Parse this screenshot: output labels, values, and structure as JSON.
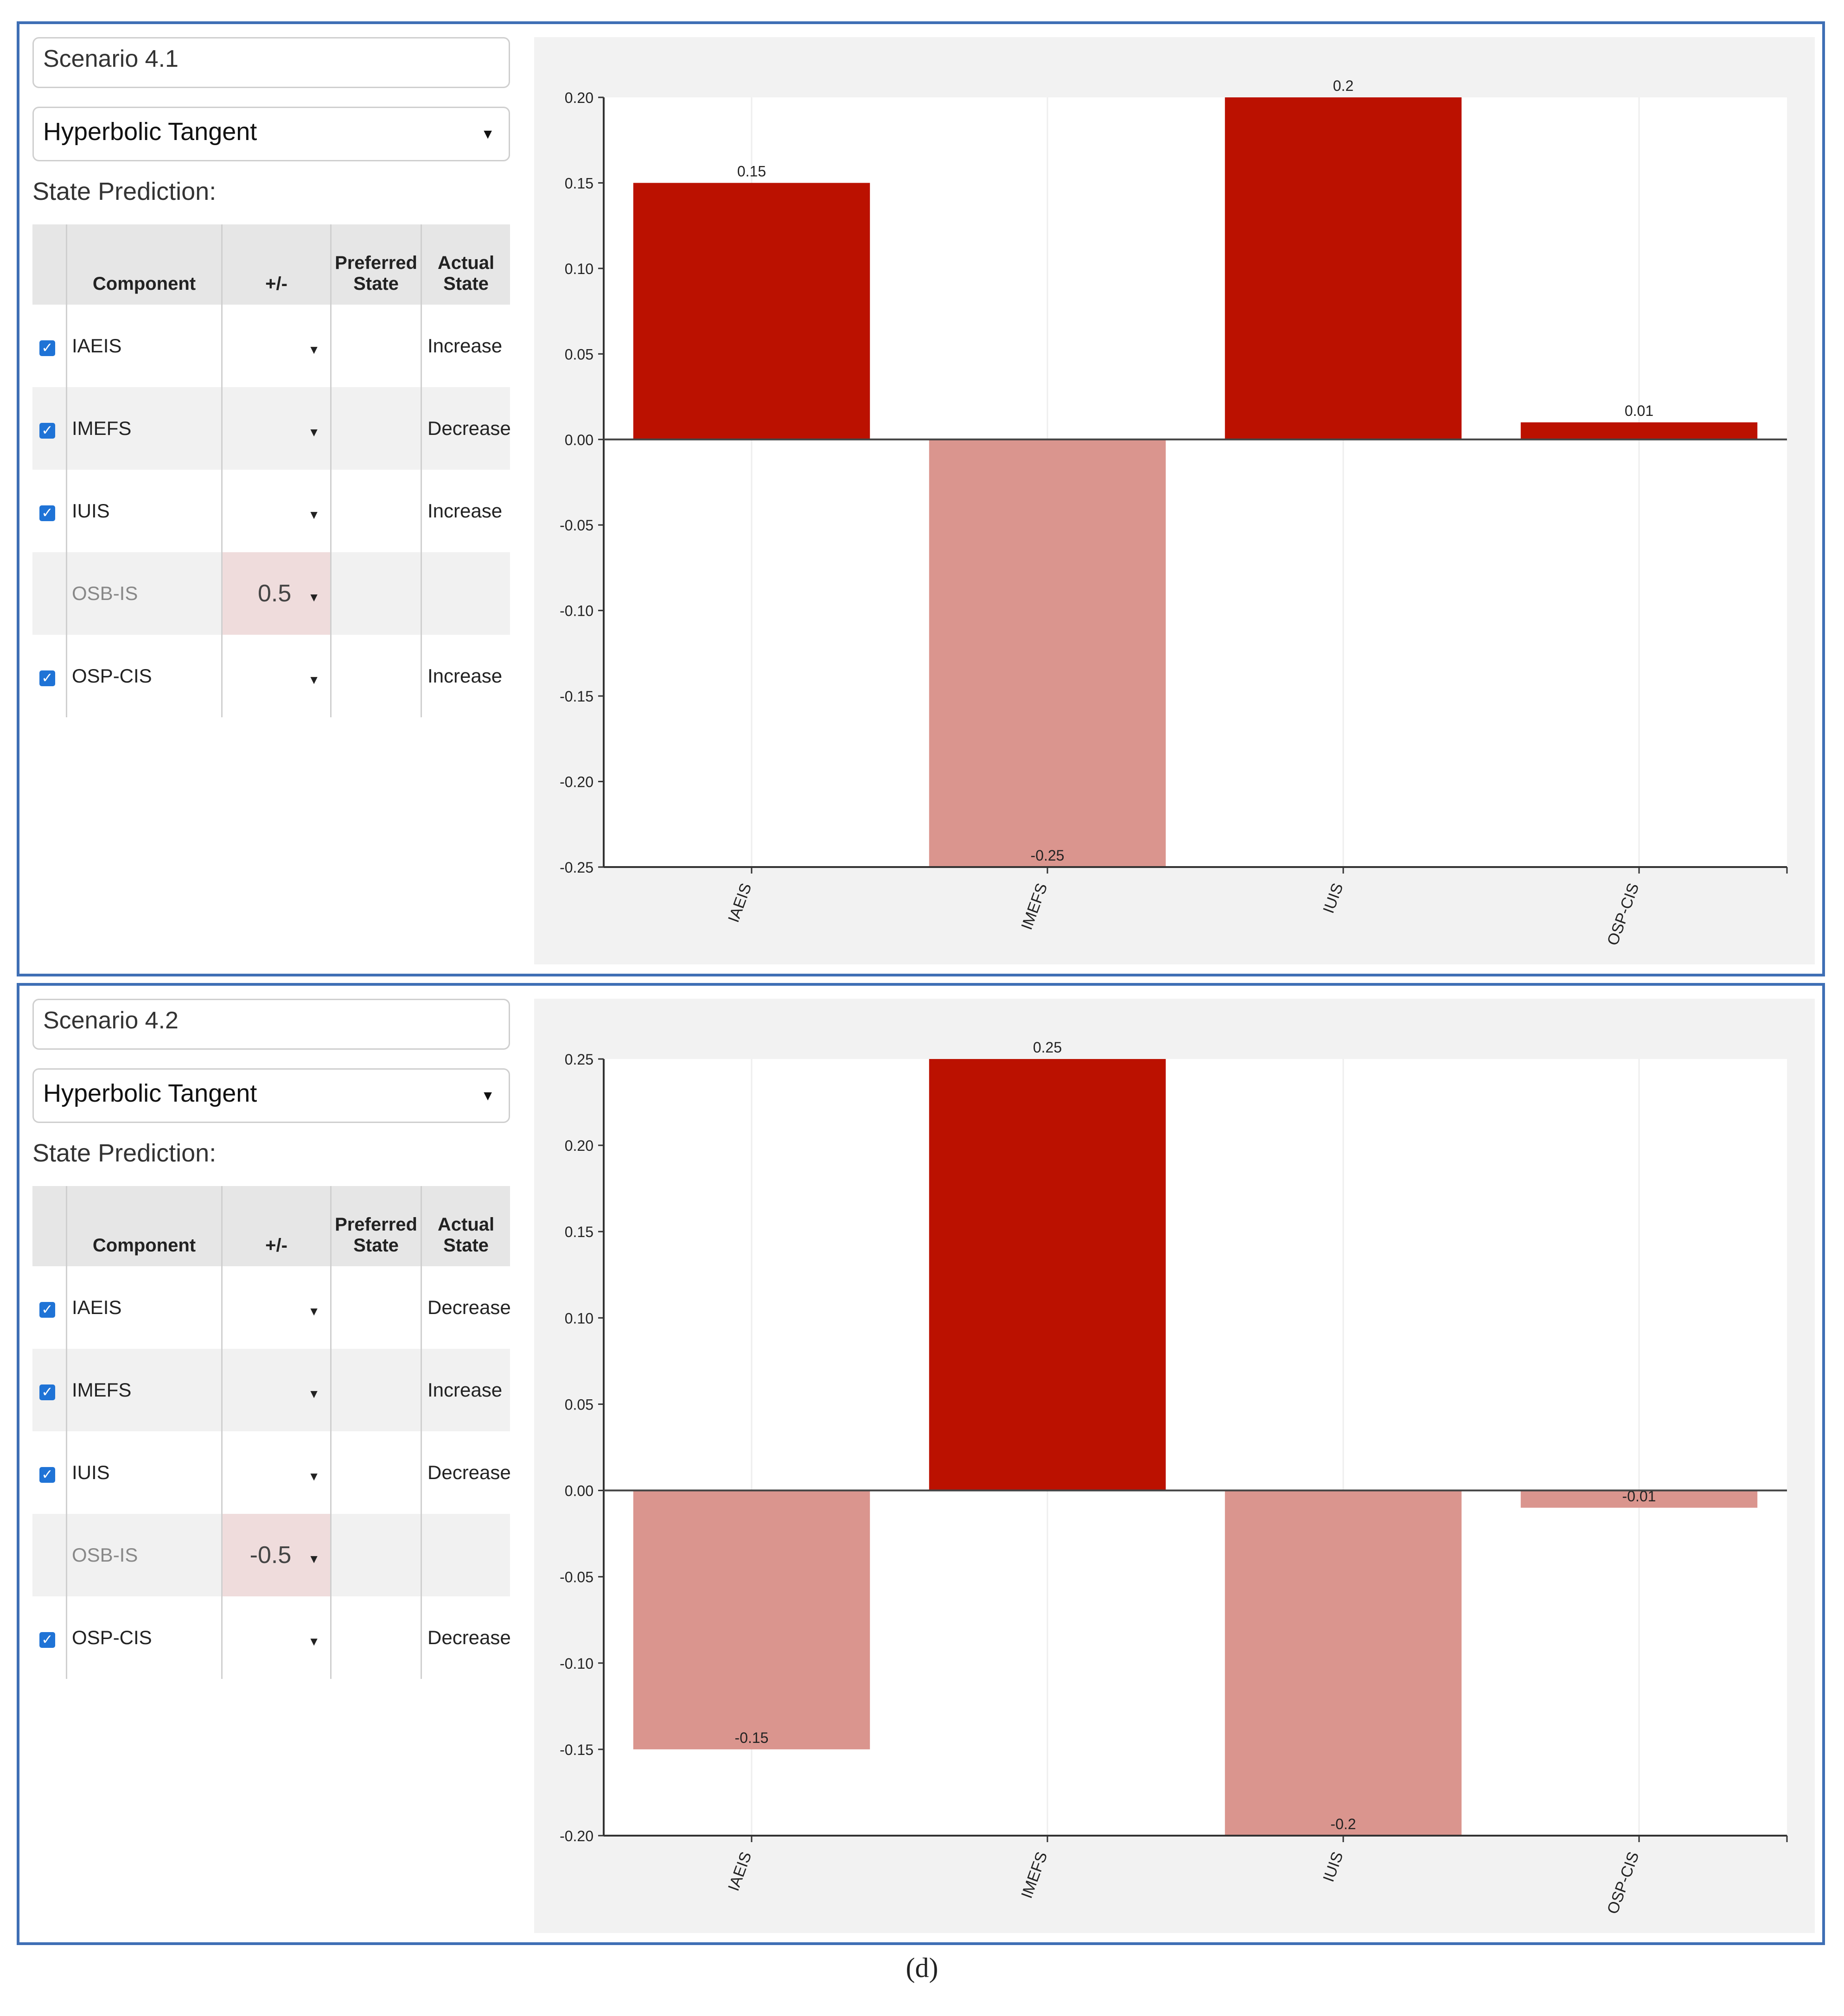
{
  "scenarios": [
    {
      "name": "Scenario 4.1",
      "function": "Hyperbolic Tangent",
      "state_prediction_label": "State Prediction:",
      "table": {
        "headers": [
          "Component",
          "+/-",
          "Preferred State",
          "Actual State"
        ],
        "rows": [
          {
            "component": "IAEIS",
            "checked": true,
            "pm": "",
            "preferred": "",
            "actual": "Increase"
          },
          {
            "component": "IMEFS",
            "checked": true,
            "pm": "",
            "preferred": "",
            "actual": "Decrease"
          },
          {
            "component": "IUIS",
            "checked": true,
            "pm": "",
            "preferred": "",
            "actual": "Increase"
          },
          {
            "component": "OSB-IS",
            "checked": false,
            "pm": "0.5",
            "preferred": "",
            "actual": ""
          },
          {
            "component": "OSP-CIS",
            "checked": true,
            "pm": "",
            "preferred": "",
            "actual": "Increase"
          }
        ]
      }
    },
    {
      "name": "Scenario 4.2",
      "function": "Hyperbolic Tangent",
      "state_prediction_label": "State Prediction:",
      "table": {
        "headers": [
          "Component",
          "+/-",
          "Preferred State",
          "Actual State"
        ],
        "rows": [
          {
            "component": "IAEIS",
            "checked": true,
            "pm": "",
            "preferred": "",
            "actual": "Decrease"
          },
          {
            "component": "IMEFS",
            "checked": true,
            "pm": "",
            "preferred": "",
            "actual": "Increase"
          },
          {
            "component": "IUIS",
            "checked": true,
            "pm": "",
            "preferred": "",
            "actual": "Decrease"
          },
          {
            "component": "OSB-IS",
            "checked": false,
            "pm": "-0.5",
            "preferred": "",
            "actual": ""
          },
          {
            "component": "OSP-CIS",
            "checked": true,
            "pm": "",
            "preferred": "",
            "actual": "Decrease"
          }
        ]
      }
    }
  ],
  "chart_data": [
    {
      "type": "bar",
      "categories": [
        "IAEIS",
        "IMEFS",
        "IUIS",
        "OSP-CIS"
      ],
      "values": [
        0.15,
        -0.25,
        0.2,
        0.01
      ],
      "data_labels": [
        "0.15",
        "-0.25",
        "0.2",
        "0.01"
      ],
      "ylim": [
        -0.25,
        0.2
      ],
      "yticks": [
        "0.20",
        "0.15",
        "0.10",
        "0.05",
        "0.00",
        "-0.05",
        "-0.10",
        "-0.15",
        "-0.20",
        "-0.25"
      ],
      "ytick_values": [
        0.2,
        0.15,
        0.1,
        0.05,
        0.0,
        -0.05,
        -0.1,
        -0.15,
        -0.2,
        -0.25
      ],
      "positive_color": "#bb1100",
      "negative_color": "#da958e"
    },
    {
      "type": "bar",
      "categories": [
        "IAEIS",
        "IMEFS",
        "IUIS",
        "OSP-CIS"
      ],
      "values": [
        -0.15,
        0.25,
        -0.2,
        -0.01
      ],
      "data_labels": [
        "-0.15",
        "0.25",
        "-0.2",
        "-0.01"
      ],
      "ylim": [
        -0.2,
        0.25
      ],
      "yticks": [
        "0.25",
        "0.20",
        "0.15",
        "0.10",
        "0.05",
        "0.00",
        "-0.05",
        "-0.10",
        "-0.15",
        "-0.20"
      ],
      "ytick_values": [
        0.25,
        0.2,
        0.15,
        0.1,
        0.05,
        0.0,
        -0.05,
        -0.1,
        -0.15,
        -0.2
      ],
      "positive_color": "#bb1100",
      "negative_color": "#da958e"
    }
  ],
  "caption": "(d)"
}
